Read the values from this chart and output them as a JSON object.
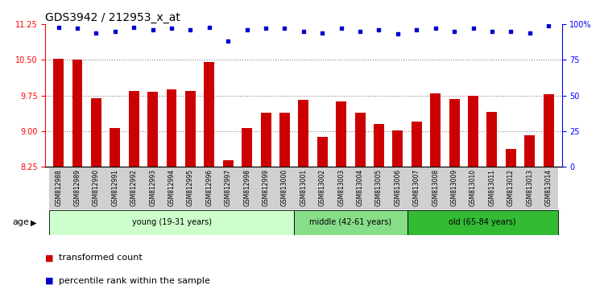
{
  "title": "GDS3942 / 212953_x_at",
  "samples": [
    "GSM812988",
    "GSM812989",
    "GSM812990",
    "GSM812991",
    "GSM812992",
    "GSM812993",
    "GSM812994",
    "GSM812995",
    "GSM812996",
    "GSM812997",
    "GSM812998",
    "GSM812999",
    "GSM813000",
    "GSM813001",
    "GSM813002",
    "GSM813003",
    "GSM813004",
    "GSM813005",
    "GSM813006",
    "GSM813007",
    "GSM813008",
    "GSM813009",
    "GSM813010",
    "GSM813011",
    "GSM813012",
    "GSM813013",
    "GSM813014"
  ],
  "bar_values": [
    10.52,
    10.5,
    9.7,
    9.06,
    9.85,
    9.82,
    9.88,
    9.85,
    10.45,
    8.38,
    9.06,
    9.38,
    9.38,
    9.65,
    8.88,
    9.62,
    9.38,
    9.15,
    9.02,
    9.2,
    9.8,
    9.68,
    9.75,
    9.4,
    8.62,
    8.92,
    9.78
  ],
  "percentile_values": [
    98,
    97,
    94,
    95,
    98,
    96,
    97,
    96,
    98,
    88,
    96,
    97,
    97,
    95,
    94,
    97,
    95,
    96,
    93,
    96,
    97,
    95,
    97,
    95,
    95,
    94,
    99
  ],
  "bar_color": "#cc0000",
  "percentile_color": "#0000cc",
  "ymin": 8.25,
  "ymax": 11.25,
  "yticks": [
    8.25,
    9.0,
    9.75,
    10.5,
    11.25
  ],
  "y2min": 0,
  "y2max": 100,
  "y2ticks": [
    0,
    25,
    50,
    75,
    100
  ],
  "group_young": {
    "label": "young (19-31 years)",
    "start": 0,
    "end": 13,
    "color": "#ccffcc"
  },
  "group_middle": {
    "label": "middle (42-61 years)",
    "start": 13,
    "end": 19,
    "color": "#88dd88"
  },
  "group_old": {
    "label": "old (65-84 years)",
    "start": 19,
    "end": 27,
    "color": "#33bb33"
  },
  "age_label": "age",
  "legend_bar": "transformed count",
  "legend_pct": "percentile rank within the sample",
  "title_fontsize": 10,
  "tick_fontsize": 7,
  "xlabel_fontsize": 6
}
